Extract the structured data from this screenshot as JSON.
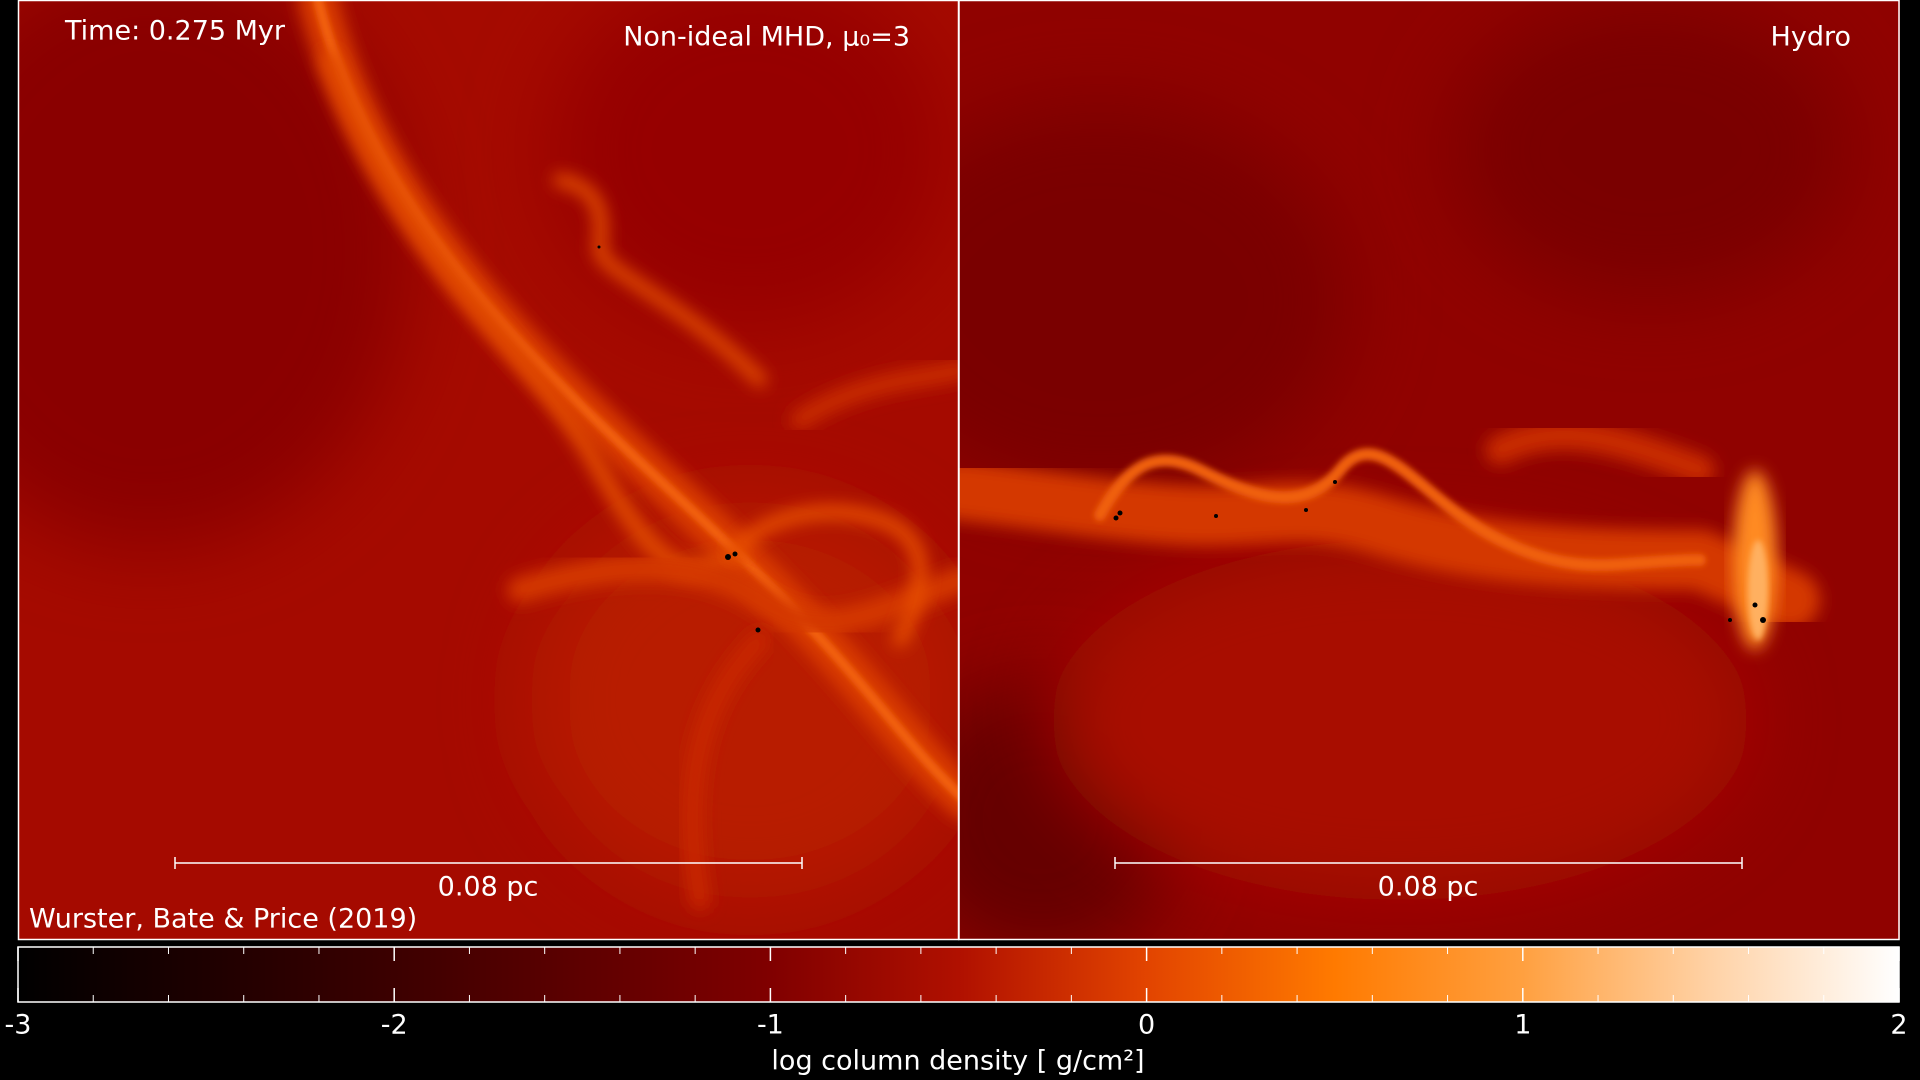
{
  "chart_data": {
    "type": "colormap",
    "time": "Time: 0.275 Myr",
    "credit": "Wurster, Bate & Price (2019)",
    "panels": [
      {
        "title": "Non-ideal MHD, μ₀=3",
        "scale_bar": "0.08 pc"
      },
      {
        "title": "Hydro",
        "scale_bar": "0.08 pc"
      }
    ],
    "xlabel": "log column density [ g/cm²]",
    "xlim": [
      -3,
      2
    ],
    "xticks": [
      -3,
      -2,
      -1,
      0,
      1,
      2
    ],
    "minor_xticks": [
      -2.8,
      -2.6,
      -2.4,
      -2.2,
      -1.8,
      -1.6,
      -1.4,
      -1.2,
      -0.8,
      -0.6,
      -0.4,
      -0.2,
      0.2,
      0.4,
      0.6,
      0.8,
      1.2,
      1.4,
      1.6,
      1.8
    ]
  }
}
